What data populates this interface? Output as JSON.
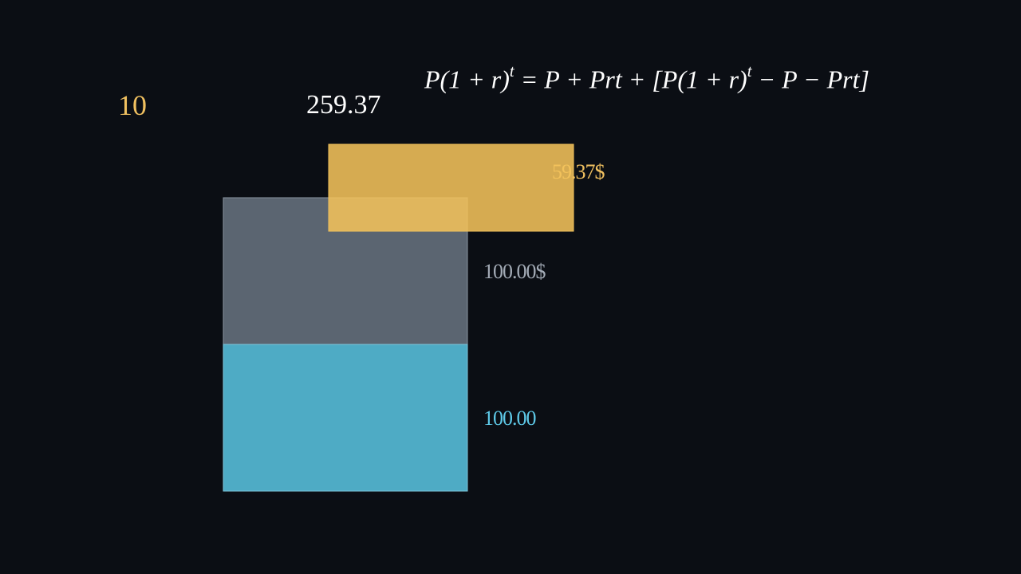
{
  "counter": "10",
  "total": "259.37",
  "formula": [
    "P(1 + r)",
    "t",
    " = P + Prt + [P(1 + r)",
    "t",
    " − P − Prt]"
  ],
  "labels": {
    "interest_extra": "59.37$",
    "interest_simple": "100.00$",
    "principal": "100.00"
  }
}
